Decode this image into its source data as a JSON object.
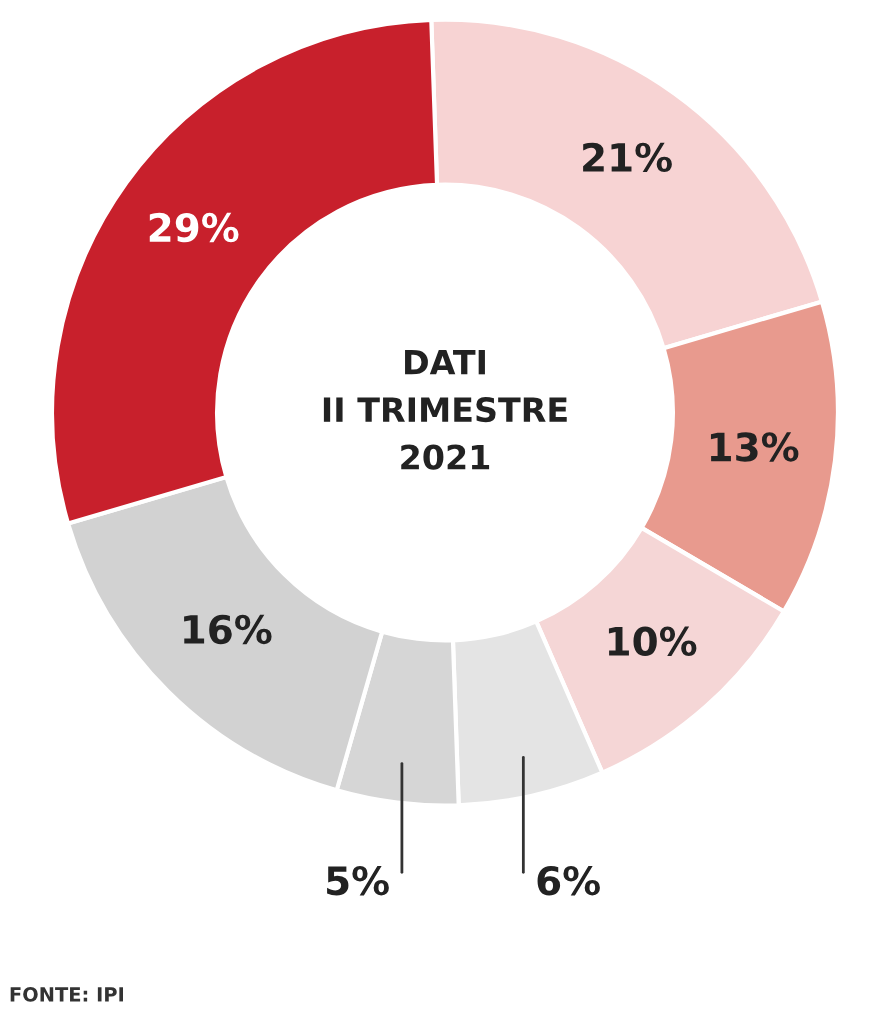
{
  "chart_data": {
    "type": "donut",
    "categories": [
      null,
      null,
      null,
      null,
      null,
      null,
      null
    ],
    "values": [
      21,
      13,
      10,
      6,
      5,
      16,
      29
    ],
    "colors": [
      "#f7d3d3",
      "#e89a8e",
      "#f5d6d6",
      "#e4e4e4",
      "#d6d6d6",
      "#d2d2d2",
      "#c8202c"
    ],
    "value_labels": [
      "21%",
      "13%",
      "10%",
      "6%",
      "5%",
      "16%",
      "29%"
    ],
    "annotations": [
      "DATI\nII TRIMESTRE\n2021",
      "FONTE: IPI"
    ]
  }
}
